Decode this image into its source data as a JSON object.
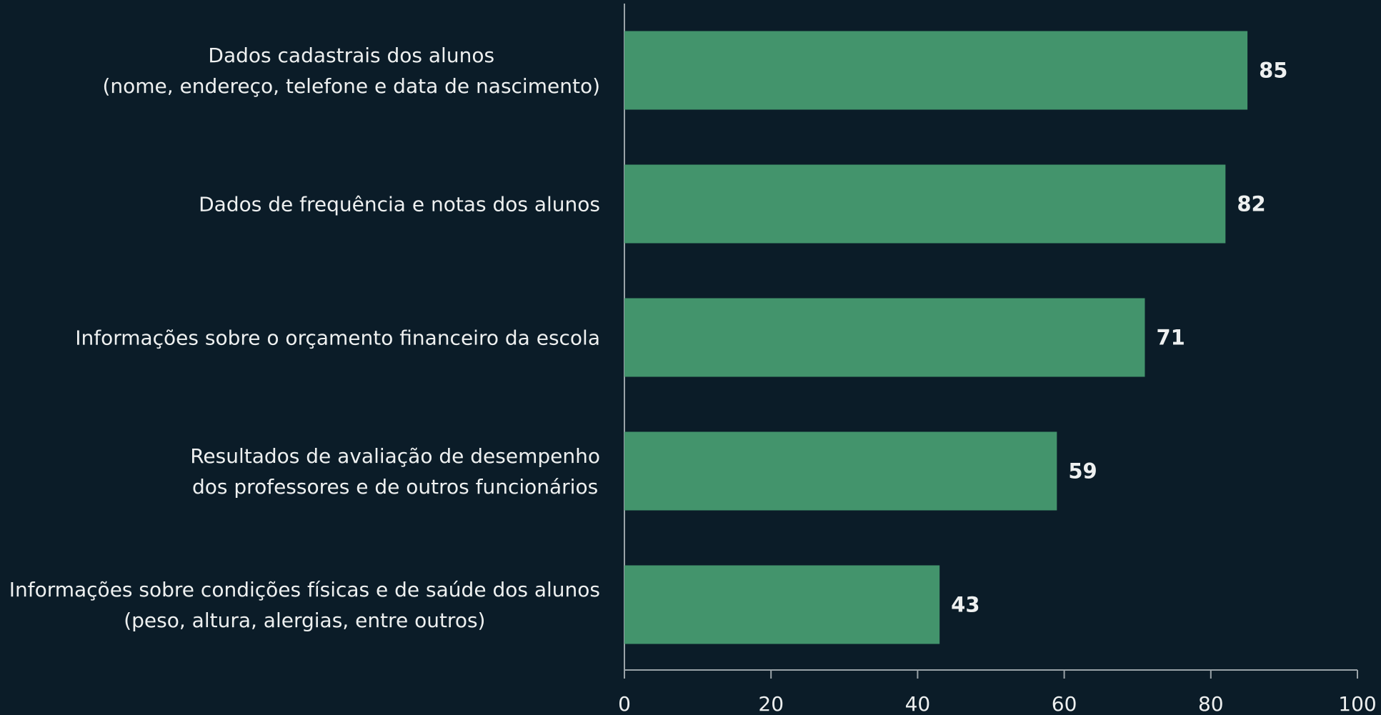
{
  "chart_data": {
    "type": "barh",
    "categories": [
      "Dados cadastrais dos alunos\n(nome, endereço, telefone e data de nascimento)",
      "Dados de frequência e notas dos alunos",
      "Informações sobre o orçamento financeiro da escola",
      "Resultados de avaliação de desempenho\ndos professores e de outros funcionários",
      "Informações sobre condições físicas e de saúde dos alunos\n(peso, altura, alergias, entre outros)"
    ],
    "values": [
      85,
      82,
      71,
      59,
      43
    ],
    "color": "#43946c",
    "xlim": [
      0,
      100
    ],
    "xticks": [
      0,
      20,
      40,
      60,
      80,
      100
    ],
    "grid": false
  }
}
